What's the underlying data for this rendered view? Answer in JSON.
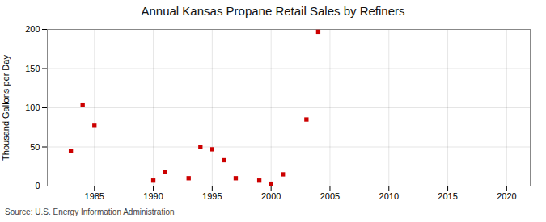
{
  "chart_data": {
    "type": "scatter",
    "title": "Annual Kansas Propane Retail Sales by Refiners",
    "ylabel": "Thousand Gallons per Day",
    "source": "Source: U.S. Energy Information Administration",
    "x": [
      1983,
      1984,
      1985,
      1990,
      1991,
      1993,
      1994,
      1995,
      1996,
      1997,
      1999,
      2000,
      2001,
      2003,
      2004
    ],
    "values": [
      45,
      104,
      78,
      7,
      18,
      10,
      50,
      47,
      33,
      10,
      7,
      3,
      15,
      85,
      197
    ],
    "color": "#cc0000",
    "marker": "square",
    "xlim": [
      1981,
      2022
    ],
    "xticks": [
      1985,
      1990,
      1995,
      2000,
      2005,
      2010,
      2015,
      2020
    ],
    "ylim": [
      0,
      200
    ],
    "yticks": [
      0,
      50,
      100,
      150,
      200
    ],
    "grid": true
  }
}
